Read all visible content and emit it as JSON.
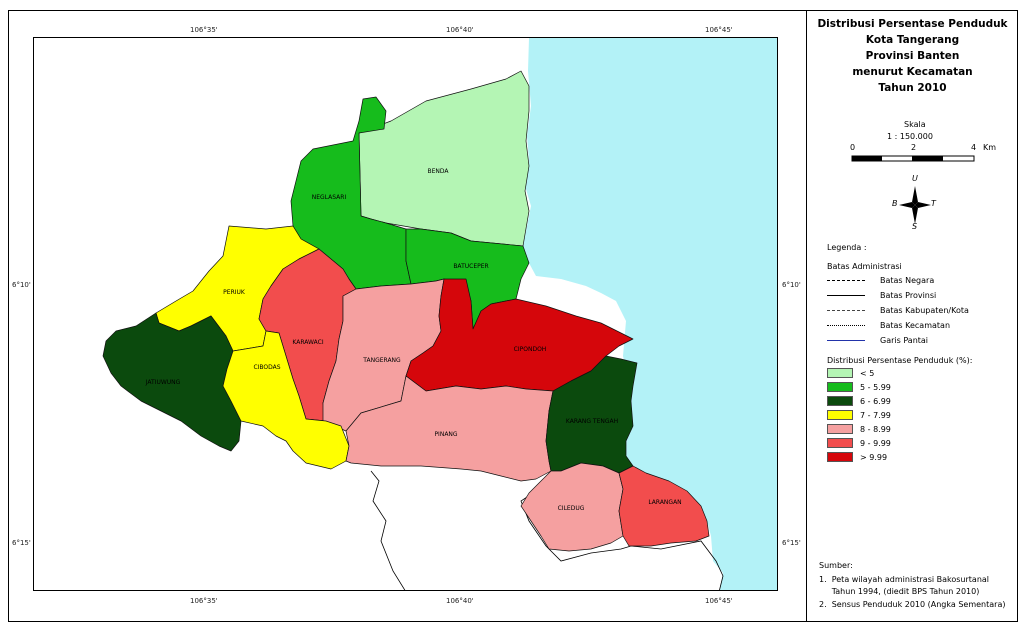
{
  "title_lines": [
    "Distribusi Persentase Penduduk",
    "Kota Tangerang",
    "Provinsi Banten",
    "menurut Kecamatan",
    "Tahun 2010"
  ],
  "scale": {
    "label": "Skala",
    "ratio": "1 : 150.000",
    "ticks": [
      "0",
      "2",
      "4"
    ],
    "unit": "Km"
  },
  "north_arrow": {
    "u": "U",
    "s": "S",
    "b": "B",
    "t": "T"
  },
  "legend_title": "Legenda :",
  "boundary_title": "Batas Administrasi",
  "boundaries": [
    "Batas Negara",
    "Batas Provinsi",
    "Batas Kabupaten/Kota",
    "Batas Kecamatan",
    "Garis Pantai"
  ],
  "class_title": "Distribusi Persentase Penduduk (%):",
  "classes": [
    {
      "label": "< 5",
      "color": "#b4f5b4"
    },
    {
      "label": "5 - 5.99",
      "color": "#16bc1c"
    },
    {
      "label": "6 - 6.99",
      "color": "#0b4a0d"
    },
    {
      "label": "7 - 7.99",
      "color": "#ffff00"
    },
    {
      "label": "8 - 8.99",
      "color": "#f5a0a0"
    },
    {
      "label": "9 - 9.99",
      "color": "#f24d4d"
    },
    {
      "label": "> 9.99",
      "color": "#d5060b"
    }
  ],
  "source_title": "Sumber:",
  "sources": [
    "1.  Peta wilayah administrasi Bakosurtanal",
    "     Tahun 1994, (diedit BPS Tahun 2010)",
    "2.  Sensus Penduduk 2010 (Angka Sementara)"
  ],
  "top_ticks": [
    "106°35'",
    "106°40'",
    "106°45'"
  ],
  "bottom_ticks": [
    "106°35'",
    "106°40'",
    "106°45'"
  ],
  "left_ticks": [
    "6°10'",
    "6°15'"
  ],
  "right_ticks": [
    "6°10'",
    "6°15'"
  ],
  "districts": {
    "benda": "BENDA",
    "neglasari": "NEGLASARI",
    "batuceper": "BATUCEPER",
    "periuk": "PERIUK",
    "karawaci": "KARAWACI",
    "tangerang": "TANGERANG",
    "cipondoh": "CIPONDOH",
    "jatiuwung": "JATIUWUNG",
    "cibodas": "CIBODAS",
    "pinang": "PINANG",
    "karang_tengah": "KARANG TENGAH",
    "ciledug": "CILEDUG",
    "larangan": "LARANGAN"
  },
  "sea_color": "#b3f2f7"
}
